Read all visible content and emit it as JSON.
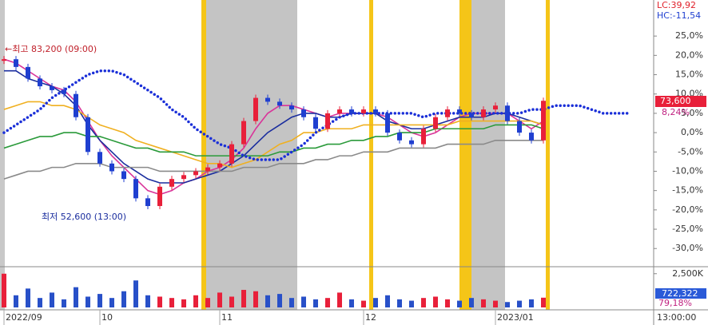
{
  "chart_data": {
    "type": "candlestick",
    "categories": [
      "2022/09",
      null,
      null,
      null,
      null,
      null,
      null,
      null,
      "10",
      null,
      null,
      null,
      null,
      null,
      null,
      null,
      null,
      null,
      "11",
      null,
      null,
      null,
      null,
      null,
      null,
      null,
      null,
      null,
      null,
      null,
      "12",
      null,
      null,
      null,
      null,
      null,
      null,
      null,
      null,
      null,
      null,
      "2023/01",
      null,
      null,
      null,
      null
    ],
    "x_end_label": "13:00:00",
    "ylim": [
      -34.5,
      33.3
    ],
    "yticks": [
      {
        "value": 25,
        "label": "25,0%"
      },
      {
        "value": 20,
        "label": "20,0%"
      },
      {
        "value": 15,
        "label": "15,0%"
      },
      {
        "value": 10,
        "label": "10,0%"
      },
      {
        "value": 5,
        "label": "5,0%"
      },
      {
        "value": 0,
        "label": "0,0%"
      },
      {
        "value": -5,
        "label": "-5,0%"
      },
      {
        "value": -10,
        "label": "-10,0%"
      },
      {
        "value": -15,
        "label": "-15,0%"
      },
      {
        "value": -20,
        "label": "-20,0%"
      },
      {
        "value": -25,
        "label": "-25,0%"
      },
      {
        "value": -30,
        "label": "-30,0%"
      }
    ],
    "price": {
      "name": "close",
      "values": [
        19,
        17,
        14,
        12,
        11,
        10,
        4,
        -5,
        -8,
        -10,
        -12,
        -17,
        -19,
        -14,
        -12,
        -11,
        -10,
        -9,
        -8,
        -3,
        3,
        9,
        8,
        7,
        6,
        4,
        1,
        5,
        6,
        5,
        6,
        5,
        0,
        -2,
        -3,
        1,
        4,
        6,
        5,
        4,
        6,
        7,
        3,
        0,
        -2,
        8.24
      ],
      "value_labels": {
        "45": "8,24%"
      },
      "up_color": "#e8203a",
      "down_color": "#1f3fd0"
    },
    "series": [
      {
        "color": "#d9359a",
        "values": [
          19,
          18,
          16,
          14,
          12,
          11,
          8,
          3,
          -2,
          -6,
          -9,
          -12,
          -15,
          -16,
          -15,
          -13,
          -12,
          -10,
          -9,
          -7,
          -4,
          1,
          5,
          7,
          7,
          6,
          5,
          4,
          5,
          5,
          5,
          5,
          4,
          2,
          0,
          -1,
          0,
          2,
          4,
          5,
          5,
          5,
          5,
          3,
          1,
          3
        ]
      },
      {
        "color": "#1a2d9e",
        "values": [
          16,
          16,
          14,
          13,
          12,
          10,
          7,
          2,
          -2,
          -5,
          -8,
          -10,
          -12,
          -13,
          -13,
          -13,
          -12,
          -11,
          -10,
          -8,
          -6,
          -3,
          0,
          2,
          4,
          5,
          5,
          4,
          4,
          5,
          5,
          5,
          3,
          2,
          1,
          1,
          2,
          3,
          4,
          4,
          4,
          5,
          5,
          4,
          3,
          2
        ]
      },
      {
        "color": "#f0b020",
        "values": [
          6,
          7,
          8,
          8,
          7,
          7,
          6,
          4,
          2,
          1,
          0,
          -2,
          -3,
          -4,
          -5,
          -6,
          -7,
          -8,
          -8,
          -9,
          -8,
          -7,
          -5,
          -3,
          -2,
          0,
          0,
          1,
          1,
          1,
          2,
          2,
          2,
          2,
          2,
          2,
          2,
          2,
          3,
          3,
          3,
          3,
          3,
          3,
          3,
          2
        ]
      },
      {
        "color": "#2a9a3a",
        "values": [
          -4,
          -3,
          -2,
          -1,
          -1,
          0,
          0,
          -1,
          -1,
          -2,
          -3,
          -4,
          -4,
          -5,
          -5,
          -5,
          -6,
          -6,
          -6,
          -6,
          -6,
          -6,
          -6,
          -5,
          -5,
          -4,
          -4,
          -3,
          -3,
          -2,
          -2,
          -1,
          -1,
          0,
          0,
          0,
          1,
          1,
          1,
          1,
          1,
          2,
          2,
          2,
          2,
          1
        ]
      },
      {
        "color": "#8a8a8a",
        "values": [
          -12,
          -11,
          -10,
          -10,
          -9,
          -9,
          -8,
          -8,
          -8,
          -9,
          -9,
          -9,
          -9,
          -10,
          -10,
          -10,
          -10,
          -10,
          -10,
          -10,
          -9,
          -9,
          -9,
          -8,
          -8,
          -8,
          -7,
          -7,
          -6,
          -6,
          -5,
          -5,
          -5,
          -4,
          -4,
          -4,
          -4,
          -3,
          -3,
          -3,
          -3,
          -2,
          -2,
          -2,
          -2,
          -2
        ]
      }
    ],
    "lead_line": {
      "color": "#1a2fd8",
      "values": [
        0,
        2,
        4,
        6,
        9,
        11,
        13,
        15,
        16,
        16,
        15,
        13,
        11,
        9,
        6,
        4,
        1,
        -1,
        -3,
        -4,
        -6,
        -7,
        -7,
        -7,
        -5,
        -3,
        0,
        2,
        4,
        5,
        5,
        5,
        5,
        5,
        5,
        4,
        5,
        5,
        5,
        5,
        5,
        5,
        5,
        5,
        6,
        6,
        7,
        7,
        7,
        6,
        5,
        5,
        5
      ]
    },
    "volume": {
      "ylim": [
        0,
        2900
      ],
      "yticks": [
        {
          "value": 2500,
          "label": "2,500K"
        }
      ],
      "values": [
        2500,
        900,
        1400,
        700,
        1100,
        600,
        1500,
        800,
        1000,
        700,
        1200,
        2000,
        900,
        800,
        700,
        600,
        900,
        700,
        1100,
        800,
        1300,
        1200,
        900,
        1000,
        700,
        800,
        600,
        700,
        1100,
        600,
        500,
        700,
        900,
        600,
        500,
        700,
        800,
        600,
        500,
        700,
        600,
        500,
        400,
        500,
        600,
        722.322
      ],
      "last_label": "722,322",
      "ratio_label": "79,18%",
      "color": "#2850c8"
    },
    "last_price_label": "73,600",
    "annotations": {
      "lc": "LC:39,92",
      "hc": "HC:-11,54",
      "high": "←최고 83,200 (09:00)",
      "low": "최저 52,600 (13:00)"
    }
  }
}
